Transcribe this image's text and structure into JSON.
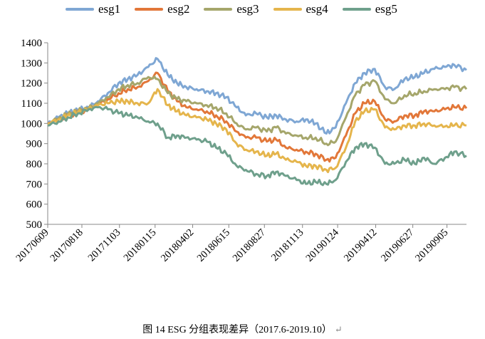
{
  "chart_data": {
    "type": "line",
    "title": "",
    "xlabel": "",
    "ylabel": "",
    "ylim": [
      500,
      1400
    ],
    "yticks": [
      500,
      600,
      700,
      800,
      900,
      1000,
      1100,
      1200,
      1300,
      1400
    ],
    "grid": false,
    "legend_position": "top",
    "x_tick_labels": [
      "20170609",
      "20170818",
      "20171103",
      "20180115",
      "20180402",
      "20180615",
      "20180827",
      "20181113",
      "20190124",
      "20190412",
      "20190627",
      "20190905"
    ],
    "x_samples": [
      "2017-06-09",
      "2017-07-01",
      "2017-07-20",
      "2017-08-10",
      "2017-09-01",
      "2017-09-20",
      "2017-10-10",
      "2017-11-01",
      "2017-11-20",
      "2017-12-10",
      "2018-01-01",
      "2018-01-20",
      "2018-02-10",
      "2018-03-01",
      "2018-03-20",
      "2018-04-10",
      "2018-05-01",
      "2018-05-20",
      "2018-06-10",
      "2018-07-01",
      "2018-07-20",
      "2018-08-10",
      "2018-09-01",
      "2018-09-20",
      "2018-10-10",
      "2018-11-01",
      "2018-11-20",
      "2018-12-10",
      "2019-01-01",
      "2019-01-20",
      "2019-02-10",
      "2019-03-01",
      "2019-03-20",
      "2019-04-10",
      "2019-05-01",
      "2019-05-20",
      "2019-06-10",
      "2019-07-01",
      "2019-07-20",
      "2019-08-10",
      "2019-09-01",
      "2019-09-20",
      "2019-10-15"
    ],
    "series": [
      {
        "name": "esg1",
        "color": "#7FA7D4",
        "values": [
          1000,
          1030,
          1050,
          1065,
          1080,
          1110,
          1150,
          1200,
          1220,
          1240,
          1280,
          1320,
          1240,
          1200,
          1180,
          1170,
          1160,
          1150,
          1130,
          1080,
          1040,
          1050,
          1030,
          1040,
          1020,
          1010,
          1020,
          1000,
          950,
          980,
          1100,
          1200,
          1250,
          1270,
          1180,
          1170,
          1220,
          1230,
          1250,
          1270,
          1280,
          1290,
          1265
        ]
      },
      {
        "name": "esg2",
        "color": "#E27739",
        "values": [
          1000,
          1020,
          1040,
          1055,
          1070,
          1095,
          1120,
          1150,
          1170,
          1180,
          1210,
          1250,
          1160,
          1110,
          1080,
          1070,
          1060,
          1040,
          1010,
          960,
          930,
          930,
          910,
          920,
          880,
          870,
          860,
          850,
          820,
          830,
          940,
          1050,
          1100,
          1110,
          1020,
          1010,
          1040,
          1040,
          1060,
          1060,
          1070,
          1080,
          1075
        ]
      },
      {
        "name": "esg3",
        "color": "#A5A66B",
        "values": [
          1000,
          1025,
          1045,
          1060,
          1075,
          1100,
          1130,
          1170,
          1190,
          1200,
          1230,
          1220,
          1150,
          1120,
          1110,
          1100,
          1090,
          1080,
          1050,
          1000,
          970,
          980,
          960,
          980,
          950,
          940,
          930,
          930,
          900,
          910,
          1030,
          1140,
          1190,
          1210,
          1120,
          1100,
          1140,
          1150,
          1160,
          1170,
          1170,
          1180,
          1170
        ]
      },
      {
        "name": "esg4",
        "color": "#E5B54C",
        "values": [
          1000,
          1020,
          1040,
          1055,
          1070,
          1090,
          1100,
          1110,
          1110,
          1100,
          1100,
          1170,
          1090,
          1060,
          1040,
          1030,
          1020,
          1000,
          970,
          900,
          870,
          860,
          840,
          850,
          820,
          810,
          790,
          790,
          770,
          780,
          880,
          1010,
          1060,
          1070,
          980,
          970,
          990,
          990,
          1000,
          990,
          985,
          990,
          990
        ]
      },
      {
        "name": "esg5",
        "color": "#6FA08C",
        "values": [
          990,
          1010,
          1030,
          1050,
          1070,
          1080,
          1070,
          1050,
          1040,
          1030,
          1010,
          1000,
          930,
          940,
          930,
          920,
          910,
          880,
          850,
          790,
          770,
          750,
          740,
          760,
          740,
          720,
          700,
          710,
          700,
          720,
          810,
          880,
          900,
          880,
          800,
          800,
          820,
          800,
          830,
          800,
          830,
          860,
          840
        ]
      }
    ]
  },
  "caption": {
    "text": "图 14 ESG 分组表现差异（2017.6-2019.10）",
    "return_mark": "↵"
  }
}
